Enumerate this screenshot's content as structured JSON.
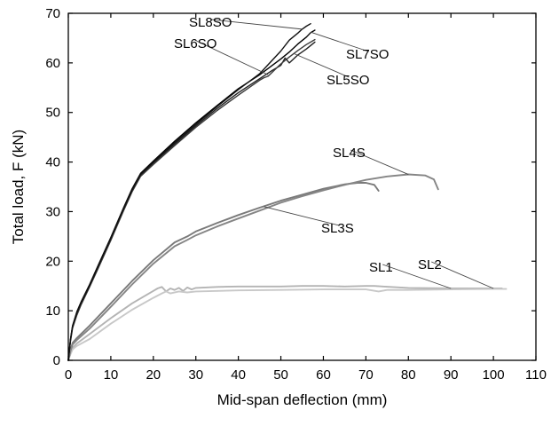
{
  "chart_data": {
    "type": "line",
    "title": "",
    "xlabel": "Mid-span deflection (mm)",
    "ylabel": "Total load, F (kN)",
    "xlim": [
      0,
      110
    ],
    "ylim": [
      0,
      70
    ],
    "xticks": [
      0,
      10,
      20,
      30,
      40,
      50,
      60,
      70,
      80,
      90,
      100,
      110
    ],
    "yticks": [
      0,
      10,
      20,
      30,
      40,
      50,
      60,
      70
    ],
    "grid": false,
    "series": [
      {
        "name": "SL1",
        "color": "#b4b4b4",
        "x": [
          0,
          0.5,
          1,
          2,
          5,
          10,
          15,
          20,
          21,
          22,
          23,
          24,
          25,
          26,
          27,
          28,
          29,
          30,
          35,
          40,
          45,
          50,
          55,
          60,
          65,
          70,
          72,
          74,
          80,
          90,
          100,
          102
        ],
        "y": [
          0,
          1.5,
          2.5,
          3.4,
          5.3,
          8.5,
          11.5,
          14.0,
          14.5,
          14.8,
          13.9,
          14.5,
          14.2,
          14.6,
          14.0,
          14.7,
          14.3,
          14.6,
          14.8,
          14.9,
          14.9,
          14.9,
          15.0,
          15.0,
          14.9,
          15.0,
          15.0,
          14.9,
          14.6,
          14.5,
          14.5,
          14.5
        ]
      },
      {
        "name": "SL2",
        "color": "#c8c8c8",
        "x": [
          0,
          0.5,
          1,
          2,
          5,
          10,
          15,
          20,
          22,
          23,
          24,
          26,
          28,
          30,
          40,
          50,
          60,
          70,
          73,
          75,
          80,
          90,
          100,
          103
        ],
        "y": [
          0,
          1.2,
          2.2,
          2.9,
          4.3,
          7.4,
          10.2,
          12.6,
          13.5,
          13.9,
          13.5,
          13.9,
          13.7,
          13.9,
          14.1,
          14.2,
          14.3,
          14.3,
          13.9,
          14.2,
          14.2,
          14.3,
          14.4,
          14.4
        ]
      },
      {
        "name": "SL3S",
        "color": "#7a7a7a",
        "x": [
          0,
          0.5,
          1,
          2,
          5,
          10,
          15,
          20,
          25,
          28,
          30,
          35,
          40,
          45,
          50,
          55,
          60,
          65,
          68,
          70,
          72,
          73
        ],
        "y": [
          0,
          2.0,
          3.5,
          4.5,
          7.0,
          11.5,
          16.0,
          20.2,
          23.8,
          25.0,
          26.0,
          27.7,
          29.3,
          30.8,
          32.2,
          33.4,
          34.6,
          35.5,
          35.8,
          35.8,
          35.4,
          34.2
        ]
      },
      {
        "name": "SL4S",
        "color": "#858585",
        "x": [
          0,
          0.5,
          1,
          2,
          5,
          10,
          15,
          20,
          25,
          28,
          30,
          35,
          40,
          45,
          50,
          55,
          60,
          65,
          70,
          75,
          80,
          84,
          86,
          87
        ],
        "y": [
          0,
          1.8,
          3.2,
          4.1,
          6.4,
          10.8,
          15.3,
          19.5,
          23.0,
          24.3,
          25.2,
          27.0,
          28.6,
          30.2,
          31.8,
          33.1,
          34.3,
          35.4,
          36.4,
          37.1,
          37.5,
          37.3,
          36.5,
          34.5
        ]
      },
      {
        "name": "SL5SO",
        "color": "#202020",
        "x": [
          0,
          0.5,
          1,
          2,
          3,
          5,
          7,
          10,
          13,
          15,
          17,
          20,
          25,
          30,
          35,
          40,
          45,
          48,
          50,
          51,
          52,
          54,
          56,
          58
        ],
        "y": [
          0,
          4.0,
          6.8,
          9.5,
          11.5,
          15.0,
          18.8,
          24.5,
          30.5,
          34.3,
          37.3,
          39.8,
          43.6,
          47.3,
          50.8,
          54.0,
          56.8,
          58.5,
          59.5,
          61.0,
          60.0,
          61.6,
          62.8,
          64.2
        ]
      },
      {
        "name": "SL6SO",
        "color": "#3a3a3a",
        "x": [
          0,
          0.5,
          1,
          2,
          3,
          5,
          7,
          10,
          13,
          15,
          17,
          20,
          25,
          30,
          35,
          40,
          45,
          46,
          47,
          50,
          52,
          54,
          56,
          58
        ],
        "y": [
          0,
          3.8,
          6.5,
          9.1,
          11.2,
          14.8,
          18.5,
          24.2,
          30.2,
          34.0,
          37.1,
          39.5,
          43.3,
          47.0,
          50.4,
          53.5,
          56.5,
          57.0,
          57.3,
          59.8,
          61.2,
          62.5,
          63.7,
          64.7
        ]
      },
      {
        "name": "SL7SO",
        "color": "#000000",
        "x": [
          0,
          0.5,
          1,
          2,
          3,
          5,
          7,
          10,
          13,
          15,
          17,
          20,
          25,
          30,
          35,
          40,
          45,
          50,
          52,
          54,
          55,
          56,
          57,
          58
        ],
        "y": [
          0,
          4.2,
          7.0,
          9.8,
          11.8,
          15.3,
          19.1,
          24.8,
          30.8,
          34.6,
          37.7,
          40.2,
          44.2,
          47.9,
          51.4,
          54.8,
          57.6,
          60.8,
          62.2,
          63.8,
          64.5,
          65.2,
          66.1,
          66.6
        ]
      },
      {
        "name": "SL8SO",
        "color": "#111111",
        "x": [
          0,
          0.5,
          1,
          2,
          3,
          5,
          7,
          10,
          13,
          15,
          17,
          20,
          25,
          30,
          35,
          40,
          45,
          50,
          52,
          54,
          55,
          56,
          57
        ],
        "y": [
          0,
          4.1,
          6.9,
          9.6,
          11.6,
          15.1,
          18.9,
          24.6,
          30.6,
          34.4,
          37.5,
          40.0,
          43.9,
          47.6,
          51.2,
          54.6,
          57.8,
          62.4,
          64.6,
          66.0,
          66.8,
          67.4,
          67.9
        ]
      }
    ],
    "annotations": [
      {
        "series": "SL8SO",
        "text": "SL8SO"
      },
      {
        "series": "SL6SO",
        "text": "SL6SO"
      },
      {
        "series": "SL7SO",
        "text": "SL7SO"
      },
      {
        "series": "SL5SO",
        "text": "SL5SO"
      },
      {
        "series": "SL4S",
        "text": "SL4S"
      },
      {
        "series": "SL3S",
        "text": "SL3S"
      },
      {
        "series": "SL1",
        "text": "SL1"
      },
      {
        "series": "SL2",
        "text": "SL2"
      }
    ]
  }
}
